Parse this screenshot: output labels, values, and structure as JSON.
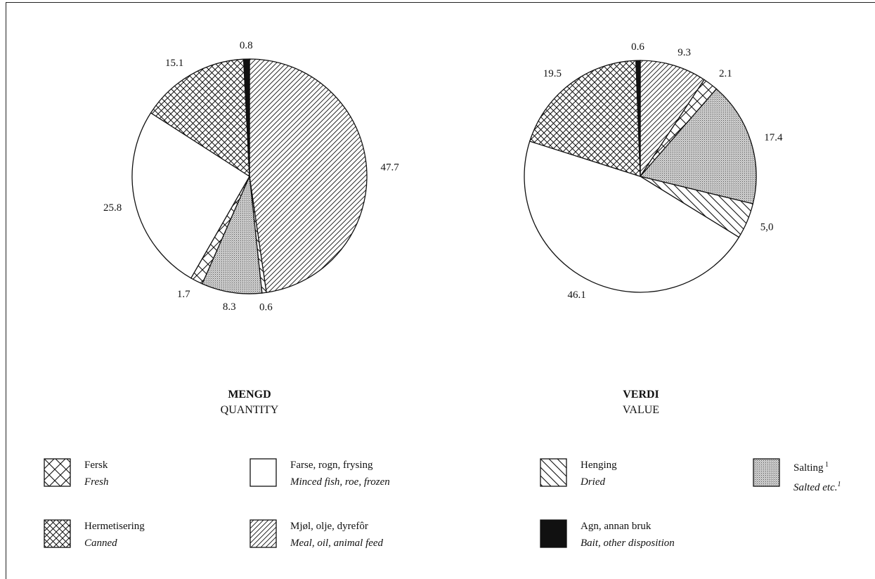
{
  "chart_data": [
    {
      "type": "pie",
      "title": "MENGD",
      "subtitle": "QUANTITY",
      "slices": [
        {
          "category": "meal",
          "value": 47.7,
          "label": "47.7"
        },
        {
          "category": "hanging",
          "value": 0.6,
          "label": "0.6"
        },
        {
          "category": "salting",
          "value": 8.3,
          "label": "8.3"
        },
        {
          "category": "fresh",
          "value": 1.7,
          "label": "1.7"
        },
        {
          "category": "frozen",
          "value": 25.8,
          "label": "25.8"
        },
        {
          "category": "canned",
          "value": 15.1,
          "label": "15.1"
        },
        {
          "category": "bait",
          "value": 0.8,
          "label": "0.8"
        }
      ]
    },
    {
      "type": "pie",
      "title": "VERDI",
      "subtitle": "VALUE",
      "slices": [
        {
          "category": "meal",
          "value": 9.3,
          "label": "9.3"
        },
        {
          "category": "fresh",
          "value": 2.1,
          "label": "2.1"
        },
        {
          "category": "salting",
          "value": 17.4,
          "label": "17.4"
        },
        {
          "category": "hanging",
          "value": 5.0,
          "label": "5,0"
        },
        {
          "category": "frozen",
          "value": 46.1,
          "label": "46.1"
        },
        {
          "category": "canned",
          "value": 19.5,
          "label": "19.5"
        },
        {
          "category": "bait",
          "value": 0.6,
          "label": "0.6"
        }
      ]
    }
  ],
  "legend": [
    {
      "category": "fresh",
      "name": "Fersk",
      "name_en": "Fresh",
      "pattern": "cross-wide"
    },
    {
      "category": "frozen",
      "name": "Farse, rogn, frysing",
      "name_en": "Minced fish, roe, frozen",
      "pattern": "white"
    },
    {
      "category": "hanging",
      "name": "Henging",
      "name_en": "Dried",
      "pattern": "diag-back"
    },
    {
      "category": "salting",
      "name": "Salting",
      "name_sup": "1",
      "name_en": "Salted etc.",
      "name_en_sup": "1",
      "pattern": "stipple"
    },
    {
      "category": "canned",
      "name": "Hermetisering",
      "name_en": "Canned",
      "pattern": "cross-fine"
    },
    {
      "category": "meal",
      "name": "Mjøl, olje, dyrefôr",
      "name_en": "Meal, oil, animal feed",
      "pattern": "diag-fwd"
    },
    {
      "category": "bait",
      "name": "Agn, annan bruk",
      "name_en": "Bait, other disposition",
      "pattern": "black"
    }
  ],
  "colors": {
    "ink": "#111111",
    "stipple_bg": "#c8c8c8",
    "background": "#ffffff"
  }
}
